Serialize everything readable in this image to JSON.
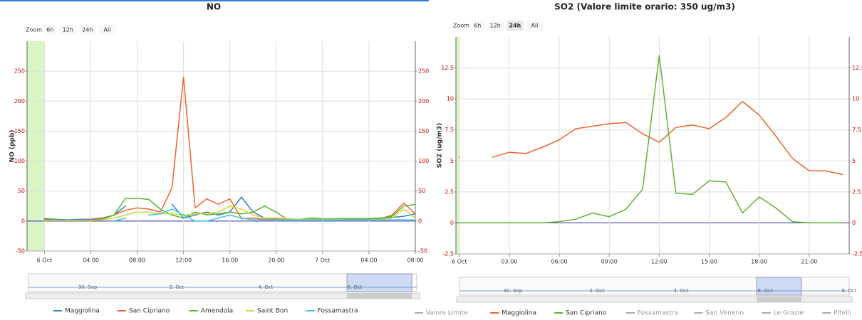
{
  "chart_data": [
    {
      "type": "line",
      "title": "NO",
      "y_label": "NO (ppb)",
      "zoom_label": "Zoom",
      "zoom_buttons": [
        "6h",
        "12h",
        "24h",
        "All"
      ],
      "zoom_selected": null,
      "x": [
        0,
        1,
        2,
        3,
        4,
        5,
        6,
        7,
        8,
        9,
        10,
        11,
        12,
        13,
        14,
        15,
        16,
        17,
        18,
        19,
        20,
        21,
        22,
        23,
        24,
        25,
        26,
        27,
        28,
        29,
        30,
        31,
        32
      ],
      "xlim": [
        -1.5,
        32
      ],
      "xticks": [
        {
          "value": 0,
          "label": "6 Oct"
        },
        {
          "value": 4,
          "label": "04:00"
        },
        {
          "value": 8,
          "label": "08:00"
        },
        {
          "value": 12,
          "label": "12:00"
        },
        {
          "value": 16,
          "label": "16:00"
        },
        {
          "value": 20,
          "label": "20:00"
        },
        {
          "value": 24,
          "label": "7 Oct"
        },
        {
          "value": 28,
          "label": "04:00"
        },
        {
          "value": 32,
          "label": "08:00"
        }
      ],
      "ylim": [
        -50,
        300
      ],
      "yticks": [
        -50,
        0,
        50,
        100,
        150,
        200,
        250
      ],
      "plot_band": {
        "from": -1.5,
        "to": 0,
        "color": "#d9f5c4"
      },
      "grid": true,
      "navigator_labels": [
        "30. Sep",
        "2. Oct",
        "4. Oct",
        "6. Oct"
      ],
      "series": [
        {
          "name": "Maggiolina",
          "color": "#2f7ed8",
          "values": [
            4,
            3,
            2,
            3,
            3,
            5,
            10,
            25,
            null,
            null,
            null,
            28,
            5,
            10,
            15,
            10,
            15,
            40,
            15,
            5,
            4,
            3,
            3,
            3,
            3,
            3,
            3,
            4,
            4,
            5,
            6,
            8,
            12
          ]
        },
        {
          "name": "San Cipriano",
          "color": "#f0642c",
          "values": [
            3,
            2,
            1,
            1,
            2,
            4,
            10,
            18,
            22,
            20,
            15,
            55,
            240,
            22,
            37,
            28,
            37,
            4,
            5,
            3,
            3,
            3,
            3,
            3,
            3,
            3,
            3,
            3,
            3,
            4,
            10,
            30,
            12
          ]
        },
        {
          "name": "Amendola",
          "color": "#5cb531",
          "values": [
            2,
            2,
            1,
            1,
            1,
            3,
            10,
            38,
            38,
            36,
            20,
            10,
            5,
            15,
            10,
            12,
            15,
            12,
            15,
            25,
            15,
            2,
            3,
            5,
            4,
            4,
            4,
            4,
            4,
            5,
            8,
            25,
            28
          ]
        },
        {
          "name": "Saint Bon",
          "color": "#d4d435",
          "values": [
            1,
            1,
            1,
            1,
            1,
            2,
            5,
            10,
            15,
            15,
            12,
            12,
            10,
            12,
            12,
            15,
            25,
            20,
            10,
            5,
            5,
            4,
            3,
            3,
            3,
            3,
            2,
            2,
            2,
            3,
            5,
            20,
            5
          ]
        },
        {
          "name": "Fossamastra",
          "color": "#3cc8e0",
          "values": [
            null,
            null,
            null,
            null,
            null,
            null,
            0,
            5,
            null,
            10,
            12,
            20,
            10,
            0,
            0,
            5,
            10,
            5,
            2,
            2,
            2,
            2,
            2,
            2,
            2,
            2,
            2,
            2,
            2,
            2,
            2,
            2,
            2
          ]
        }
      ]
    },
    {
      "type": "line",
      "title": "SO2 (Valore limite orario: 350 ug/m3)",
      "y_label": "SO2 (ug/m3)",
      "zoom_label": "Zoom",
      "zoom_buttons": [
        "6h",
        "12h",
        "24h",
        "All"
      ],
      "zoom_selected": 2,
      "x": [
        0,
        1,
        2,
        3,
        4,
        5,
        6,
        7,
        8,
        9,
        10,
        11,
        12,
        13,
        14,
        15,
        16,
        17,
        18,
        19,
        20,
        21,
        22,
        23
      ],
      "xlim": [
        -0.2,
        23.4
      ],
      "xticks": [
        {
          "value": 0,
          "label": "6 Oct"
        },
        {
          "value": 3,
          "label": "03:00"
        },
        {
          "value": 6,
          "label": "06:00"
        },
        {
          "value": 9,
          "label": "09:00"
        },
        {
          "value": 12,
          "label": "12:00"
        },
        {
          "value": 15,
          "label": "15:00"
        },
        {
          "value": 18,
          "label": "18:00"
        },
        {
          "value": 21,
          "label": "21:00"
        }
      ],
      "ylim": [
        -2.5,
        15
      ],
      "yticks": [
        -2.5,
        0,
        2.5,
        5,
        7.5,
        10,
        12.5
      ],
      "plot_band": {
        "from": -0.2,
        "to": 0,
        "color": "#d9f5c4"
      },
      "grid": true,
      "navigator_labels": [
        "30. Sep",
        "2. Oct",
        "4. Oct",
        "6. Oct",
        "8. Oct"
      ],
      "series": [
        {
          "name": "Valore Limite",
          "color": "#999999",
          "visible": false
        },
        {
          "name": "Maggiolina",
          "color": "#f0642c",
          "values": [
            5.3,
            null,
            5.3,
            5.7,
            5.6,
            6.1,
            6.7,
            7.6,
            7.8,
            8.0,
            8.1,
            7.2,
            6.5,
            7.7,
            7.9,
            7.6,
            8.5,
            9.8,
            8.7,
            7.0,
            5.2,
            4.2,
            4.2,
            3.9
          ]
        },
        {
          "name": "San Cipriano",
          "color": "#5cb531",
          "values": [
            0,
            0,
            0,
            0,
            0,
            0,
            0.1,
            0.3,
            0.8,
            0.5,
            1.1,
            2.7,
            13.5,
            2.4,
            2.3,
            3.4,
            3.3,
            0.8,
            2.1,
            1.2,
            0.1,
            0,
            0,
            0
          ]
        },
        {
          "name": "Fossamastra",
          "color": "#999999",
          "visible": false
        },
        {
          "name": "San Venerio",
          "color": "#999999",
          "visible": false
        },
        {
          "name": "Le Grazie",
          "color": "#999999",
          "visible": false
        },
        {
          "name": "Pitelli",
          "color": "#999999",
          "visible": false
        }
      ]
    }
  ]
}
